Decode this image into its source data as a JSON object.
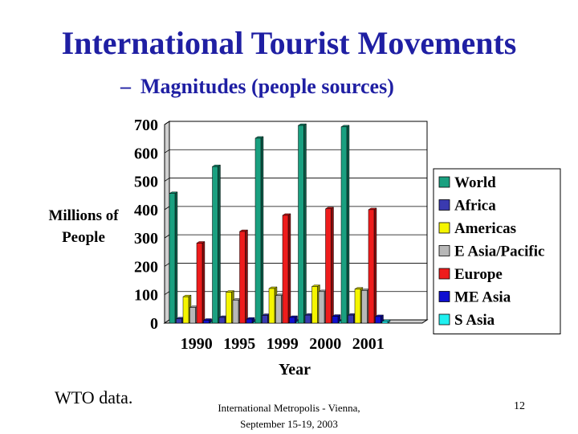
{
  "slide": {
    "title": "International Tourist Movements",
    "subtitle_dash": "–",
    "subtitle": "Magnitudes (people sources)",
    "source_note": "WTO data.",
    "footer_line1": "International Metropolis - Vienna,",
    "footer_line2": "September 15-19, 2003",
    "page_number": "12"
  },
  "chart_data": {
    "type": "bar",
    "title": "",
    "xlabel": "Year",
    "ylabel": "Millions of People",
    "ylim": [
      0,
      700
    ],
    "yticks": [
      0,
      100,
      200,
      300,
      400,
      500,
      600,
      700
    ],
    "grid": true,
    "legend_position": "right",
    "categories": [
      "1990",
      "1995",
      "1999",
      "2000",
      "2001"
    ],
    "series": [
      {
        "name": "World",
        "color": "#1aa080",
        "values": [
          457,
          552,
          652,
          697,
          692
        ]
      },
      {
        "name": "Africa",
        "color": "#3a3ab0",
        "values": [
          15,
          20,
          27,
          28,
          28
        ]
      },
      {
        "name": "Americas",
        "color": "#f5f500",
        "values": [
          93,
          109,
          122,
          129,
          120
        ]
      },
      {
        "name": "E Asia/Pacific",
        "color": "#b8b8b8",
        "values": [
          55,
          81,
          97,
          111,
          115
        ]
      },
      {
        "name": "Europe",
        "color": "#ee1c1c",
        "values": [
          282,
          323,
          380,
          403,
          400
        ]
      },
      {
        "name": "ME Asia",
        "color": "#1010d0",
        "values": [
          10,
          14,
          20,
          24,
          23
        ]
      },
      {
        "name": "S Asia",
        "color": "#20f0f0",
        "values": [
          3,
          4,
          5,
          6,
          6
        ]
      }
    ]
  }
}
